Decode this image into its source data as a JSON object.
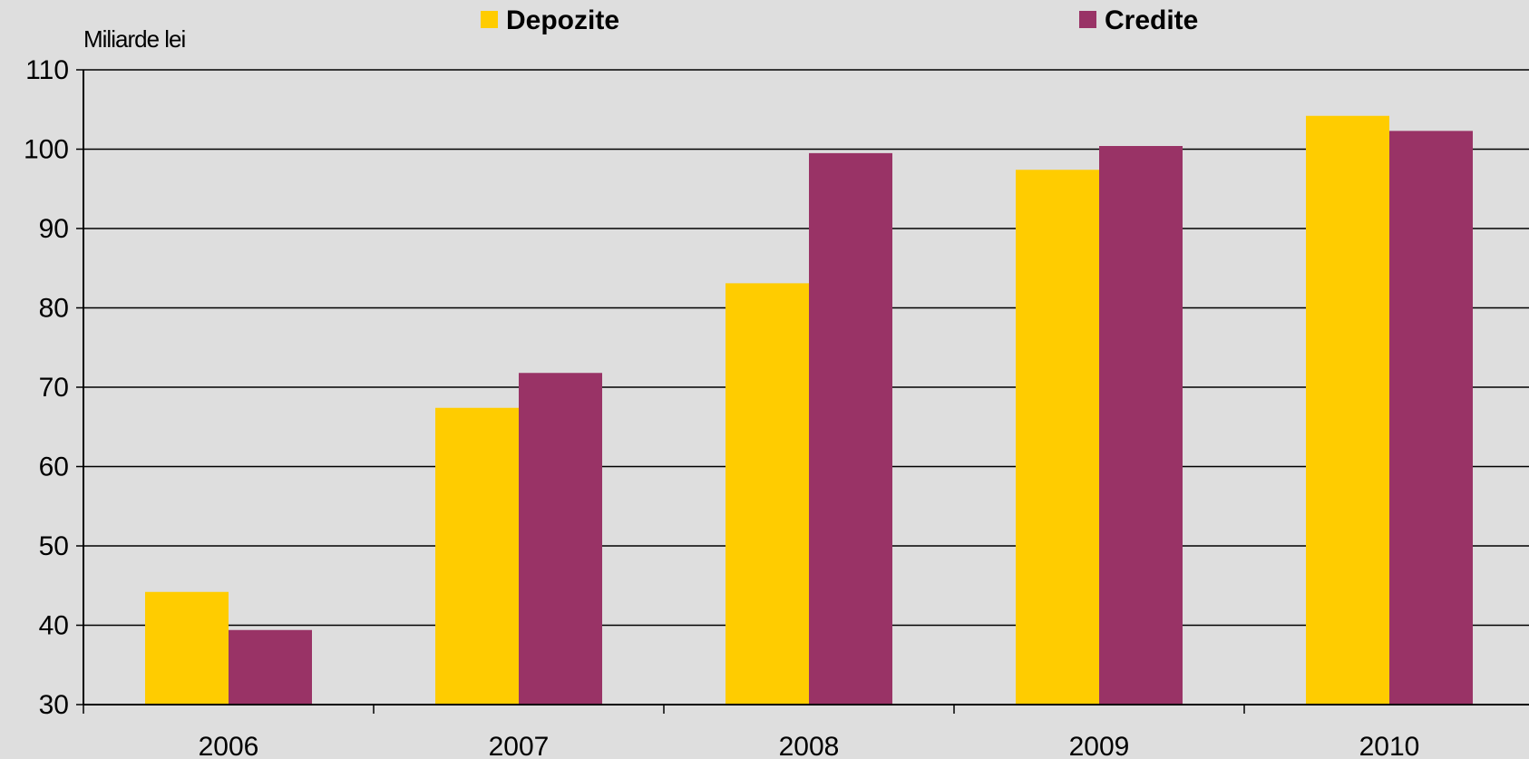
{
  "chart_data": {
    "type": "bar",
    "title": "",
    "xlabel": "",
    "ylabel": "Miliarde lei",
    "ylim": [
      30,
      110
    ],
    "yticks": [
      30,
      40,
      50,
      60,
      70,
      80,
      90,
      100,
      110
    ],
    "grid": true,
    "legend": "top",
    "categories": [
      "2006",
      "2007",
      "2008",
      "2009",
      "2010"
    ],
    "series": [
      {
        "name": "Depozite",
        "color": "#ffcc00",
        "values": [
          44.2,
          67.4,
          83.1,
          97.4,
          104.2
        ]
      },
      {
        "name": "Credite",
        "color": "#993366",
        "values": [
          39.4,
          71.8,
          99.5,
          100.4,
          102.3
        ]
      }
    ]
  }
}
